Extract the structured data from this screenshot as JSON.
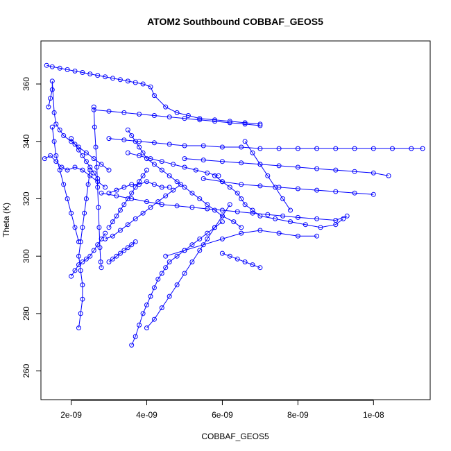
{
  "chart_data": {
    "type": "scatter",
    "title": "ATOM2 Southbound COBBAF_GEOS5",
    "xlabel": "COBBAF_GEOS5",
    "ylabel": "Theta (K)",
    "xlim": [
      1.2e-09,
      1.15e-08
    ],
    "ylim": [
      250,
      375
    ],
    "x_ticks": [
      2e-09,
      4e-09,
      6e-09,
      8e-09,
      1e-08
    ],
    "x_tick_labels": [
      "2e-09",
      "4e-09",
      "6e-09",
      "8e-09",
      "1e-08"
    ],
    "y_ticks": [
      260,
      280,
      300,
      320,
      340,
      360
    ],
    "y_tick_labels": [
      "260",
      "280",
      "300",
      "320",
      "340",
      "360"
    ],
    "grid": false,
    "marker": "open-circle",
    "connect_points": true,
    "colors": {
      "series": "#0000ff",
      "axes": "#000000",
      "background": "#ffffff"
    },
    "series": [
      {
        "x": [
          1.35e-09,
          1.5e-09,
          1.7e-09,
          1.9e-09,
          2.1e-09,
          2.3e-09,
          2.5e-09,
          2.7e-09,
          2.9e-09,
          3.1e-09,
          3.3e-09,
          3.5e-09,
          3.7e-09,
          3.9e-09,
          4.1e-09,
          4.2e-09,
          4.5e-09,
          4.8e-09,
          5.1e-09,
          5.4e-09,
          5.8e-09,
          6.2e-09,
          6.6e-09,
          7e-09
        ],
        "y": [
          366.5,
          366,
          365.5,
          365,
          364.5,
          364,
          363.5,
          363,
          362.5,
          362,
          361.5,
          361,
          360.5,
          360,
          359,
          356,
          352,
          350,
          349,
          348,
          347.5,
          347,
          346.5,
          346
        ]
      },
      {
        "x": [
          1.4e-09,
          1.45e-09,
          1.5e-09,
          1.5e-09,
          1.55e-09,
          1.6e-09,
          1.7e-09,
          1.8e-09,
          2e-09,
          2.2e-09,
          2.4e-09,
          2.6e-09,
          2.8e-09,
          3e-09
        ],
        "y": [
          352,
          355,
          358,
          361,
          350,
          346,
          344,
          342,
          340,
          338,
          336,
          334,
          332,
          330
        ]
      },
      {
        "x": [
          1.3e-09,
          1.45e-09,
          1.6e-09,
          1.75e-09,
          1.9e-09,
          2.1e-09,
          2.3e-09,
          2.5e-09,
          2.7e-09,
          2.9e-09
        ],
        "y": [
          334,
          335,
          333,
          331,
          330,
          331,
          330,
          328,
          326,
          324
        ]
      },
      {
        "x": [
          2.6e-09,
          2.62e-09,
          2.65e-09,
          2.68e-09,
          2.7e-09,
          2.72e-09,
          2.74e-09,
          2.76e-09,
          2.78e-09,
          2.8e-09
        ],
        "y": [
          352,
          345,
          338,
          331,
          324,
          317,
          310,
          303,
          298,
          296
        ]
      },
      {
        "x": [
          2.6e-09,
          3e-09,
          3.4e-09,
          3.8e-09,
          4.2e-09,
          4.6e-09,
          5e-09,
          5.4e-09,
          5.8e-09,
          6.2e-09,
          6.6e-09,
          7e-09
        ],
        "y": [
          351,
          350.5,
          350,
          349.5,
          349,
          348.5,
          348,
          347.5,
          347,
          346.5,
          346,
          345.5
        ]
      },
      {
        "x": [
          2.2e-09,
          2.25e-09,
          2.3e-09,
          2.3e-09,
          2.25e-09,
          2.2e-09,
          2.25e-09,
          2.3e-09,
          2.35e-09,
          2.4e-09,
          2.45e-09,
          2.5e-09
        ],
        "y": [
          275,
          280,
          285,
          290,
          295,
          300,
          305,
          310,
          315,
          320,
          325,
          330
        ]
      },
      {
        "x": [
          2e-09,
          2.1e-09,
          2.2e-09,
          2.3e-09,
          2.4e-09,
          2.5e-09,
          2.6e-09,
          2.7e-09,
          2.8e-09,
          2.9e-09
        ],
        "y": [
          293,
          295,
          297,
          298,
          299,
          300,
          302,
          304,
          306,
          308
        ]
      },
      {
        "x": [
          3.6e-09,
          3.7e-09,
          3.8e-09,
          3.9e-09,
          4e-09,
          4.1e-09,
          4.2e-09,
          4.3e-09,
          4.4e-09,
          4.5e-09,
          4.6e-09,
          4.8e-09,
          5e-09,
          5.2e-09,
          5.4e-09,
          5.6e-09,
          5.8e-09,
          6e-09
        ],
        "y": [
          269,
          272,
          276,
          280,
          283,
          286,
          289,
          292,
          294,
          296,
          298,
          300,
          302,
          304,
          306,
          308,
          310,
          312
        ]
      },
      {
        "x": [
          4e-09,
          4.2e-09,
          4.4e-09,
          4.6e-09,
          4.8e-09,
          5e-09,
          5.2e-09,
          5.4e-09,
          5.6e-09,
          5.8e-09,
          6e-09,
          6.2e-09
        ],
        "y": [
          275,
          278,
          282,
          286,
          290,
          294,
          298,
          302,
          306,
          310,
          314,
          318
        ]
      },
      {
        "x": [
          3e-09,
          3.4e-09,
          3.8e-09,
          4.2e-09,
          4.6e-09,
          5e-09,
          5.5e-09,
          6e-09,
          6.5e-09,
          7e-09,
          7.5e-09,
          8e-09,
          8.5e-09,
          9e-09,
          9.5e-09,
          1e-08,
          1.05e-08,
          1.1e-08,
          1.13e-08
        ],
        "y": [
          341,
          340.5,
          340,
          339.5,
          339,
          338.5,
          338.5,
          338,
          338,
          337.5,
          337.5,
          337.5,
          337.5,
          337.5,
          337.5,
          337.5,
          337.5,
          337.5,
          337.5
        ]
      },
      {
        "x": [
          5e-09,
          5.5e-09,
          6e-09,
          6.5e-09,
          7e-09,
          7.5e-09,
          8e-09,
          8.5e-09,
          9e-09,
          9.5e-09,
          1e-08,
          1.04e-08
        ],
        "y": [
          334,
          333.5,
          333,
          332.5,
          332,
          331.5,
          331,
          330.5,
          330,
          329.5,
          329,
          328
        ]
      },
      {
        "x": [
          5.5e-09,
          6e-09,
          6.5e-09,
          7e-09,
          7.5e-09,
          8e-09,
          8.5e-09,
          9e-09,
          9.5e-09,
          1e-08
        ],
        "y": [
          327,
          326,
          325,
          324.5,
          324,
          323.5,
          323,
          322.5,
          322,
          321.5
        ]
      },
      {
        "x": [
          5.8e-09,
          6e-09,
          6.2e-09,
          6.4e-09,
          6.5e-09,
          6.6e-09,
          6.8e-09,
          7e-09,
          7.4e-09,
          7.8e-09,
          8.2e-09,
          8.6e-09,
          9e-09,
          9.2e-09
        ],
        "y": [
          328,
          326,
          324,
          322,
          320,
          318,
          316,
          314,
          313,
          312,
          311,
          310,
          311,
          313
        ]
      },
      {
        "x": [
          2.8e-09,
          3.2e-09,
          3.6e-09,
          4e-09,
          4.4e-09,
          4.8e-09,
          5.2e-09,
          5.6e-09,
          6e-09,
          6.4e-09,
          6.8e-09,
          7.2e-09,
          7.6e-09,
          8e-09,
          8.5e-09,
          9e-09,
          9.3e-09
        ],
        "y": [
          322,
          321,
          320,
          319,
          318,
          317.5,
          317,
          316.5,
          316,
          315.5,
          315,
          314.5,
          314,
          313.5,
          313,
          312.5,
          314
        ]
      },
      {
        "x": [
          3e-09,
          3.2e-09,
          3.4e-09,
          3.6e-09,
          3.8e-09,
          4e-09,
          4.2e-09,
          4.4e-09,
          4.6e-09
        ],
        "y": [
          322,
          323,
          324,
          325,
          325,
          326,
          325,
          324,
          324
        ]
      },
      {
        "x": [
          4.5e-09,
          5e-09,
          5.5e-09,
          6e-09,
          6.5e-09,
          7e-09,
          7.5e-09,
          8e-09,
          8.5e-09
        ],
        "y": [
          300,
          302,
          304,
          306,
          308,
          309,
          308,
          307,
          307
        ]
      },
      {
        "x": [
          3.5e-09,
          3.6e-09,
          3.7e-09,
          3.8e-09,
          3.9e-09,
          4e-09,
          4.2e-09,
          4.4e-09,
          4.6e-09,
          4.8e-09,
          5e-09,
          5.2e-09,
          5.4e-09,
          5.6e-09,
          5.8e-09,
          6e-09,
          6.3e-09,
          6.5e-09
        ],
        "y": [
          344,
          342,
          340,
          338,
          336,
          334,
          332,
          330,
          328,
          326,
          324,
          322,
          320,
          318,
          316,
          314,
          312,
          310
        ]
      },
      {
        "x": [
          3e-09,
          3.1e-09,
          3.2e-09,
          3.3e-09,
          3.4e-09,
          3.5e-09,
          3.6e-09,
          3.7e-09,
          3.8e-09,
          3.9e-09,
          4e-09
        ],
        "y": [
          310,
          312,
          314,
          316,
          318,
          320,
          322,
          324,
          326,
          328,
          330
        ]
      },
      {
        "x": [
          3e-09,
          3.1e-09,
          3.2e-09,
          3.3e-09,
          3.4e-09,
          3.5e-09,
          3.6e-09,
          3.7e-09
        ],
        "y": [
          298,
          299,
          300,
          301,
          302,
          303,
          304,
          305
        ]
      },
      {
        "x": [
          2e-09,
          2.1e-09,
          2.2e-09,
          2.3e-09,
          2.4e-09,
          2.5e-09,
          2.6e-09,
          2.7e-09
        ],
        "y": [
          341,
          339,
          337,
          335,
          333,
          331,
          329,
          327
        ]
      },
      {
        "x": [
          1.5e-09,
          1.55e-09,
          1.6e-09,
          1.7e-09,
          1.8e-09,
          1.9e-09,
          2e-09,
          2.1e-09,
          2.2e-09
        ],
        "y": [
          345,
          340,
          335,
          330,
          325,
          320,
          315,
          310,
          305
        ]
      },
      {
        "x": [
          6.6e-09,
          6.8e-09,
          7e-09,
          7.2e-09,
          7.4e-09,
          7.6e-09,
          7.8e-09
        ],
        "y": [
          340,
          336,
          332,
          328,
          324,
          320,
          316
        ]
      },
      {
        "x": [
          6e-09,
          6.2e-09,
          6.4e-09,
          6.6e-09,
          6.8e-09,
          7e-09
        ],
        "y": [
          301,
          300,
          299,
          298,
          297,
          296
        ]
      },
      {
        "x": [
          3.5e-09,
          3.8e-09,
          4.1e-09,
          4.4e-09,
          4.7e-09,
          5e-09,
          5.3e-09,
          5.6e-09,
          5.9e-09
        ],
        "y": [
          336,
          335,
          334,
          333,
          332,
          331,
          330,
          329,
          328
        ]
      },
      {
        "x": [
          2.9e-09,
          3.1e-09,
          3.3e-09,
          3.5e-09,
          3.7e-09,
          3.9e-09,
          4.1e-09,
          4.3e-09,
          4.5e-09,
          4.7e-09,
          4.9e-09
        ],
        "y": [
          306,
          307,
          309,
          311,
          313,
          315,
          317,
          319,
          321,
          323,
          325
        ]
      }
    ]
  }
}
